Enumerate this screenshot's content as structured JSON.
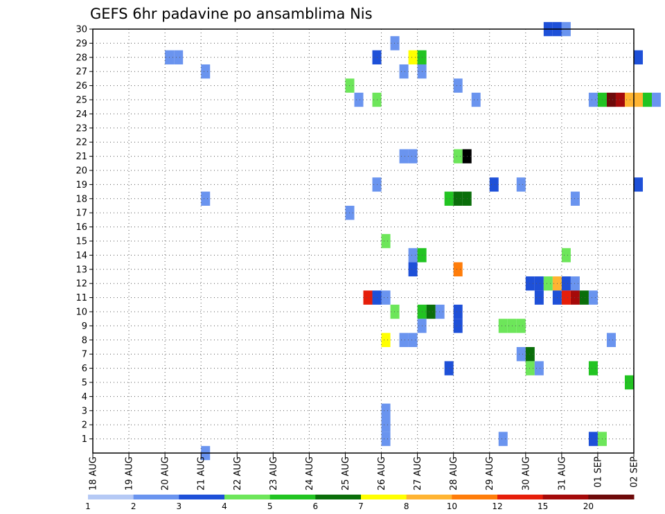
{
  "chart_data": {
    "type": "heatmap",
    "title": "GEFS 6hr padavine po ansamblima Nis",
    "x_tick_labels": [
      "18 AUG",
      "19 AUG",
      "20 AUG",
      "21 AUG",
      "22 AUG",
      "23 AUG",
      "24 AUG",
      "25 AUG",
      "26 AUG",
      "27 AUG",
      "28 AUG",
      "29 AUG",
      "30 AUG",
      "31 AUG",
      "01 SEP",
      "02 SEP"
    ],
    "y_tick_labels": [
      "1",
      "2",
      "3",
      "4",
      "5",
      "6",
      "7",
      "8",
      "9",
      "10",
      "11",
      "12",
      "13",
      "14",
      "15",
      "16",
      "17",
      "18",
      "19",
      "20",
      "21",
      "22",
      "23",
      "24",
      "25",
      "26",
      "27",
      "28",
      "29",
      "30"
    ],
    "x_range_days": [
      0,
      15
    ],
    "y_range": [
      0,
      30
    ],
    "step_days": 0.25,
    "grid": "dotted",
    "colorbar": {
      "labels": [
        "1",
        "2",
        "3",
        "4",
        "5",
        "6",
        "7",
        "8",
        "10",
        "12",
        "15",
        "20"
      ],
      "colors": [
        "#b5c9f5",
        "#6a94ef",
        "#1e50d8",
        "#6de65a",
        "#22c422",
        "#0a6e0a",
        "#ffff00",
        "#ffb432",
        "#ff7d0a",
        "#e61e0a",
        "#a50a0a",
        "#6e0a0a"
      ]
    },
    "cells": [
      [
        12.5,
        30,
        2
      ],
      [
        12.75,
        30,
        2
      ],
      [
        13,
        30,
        1
      ],
      [
        8.25,
        29,
        1
      ],
      [
        2,
        28,
        1
      ],
      [
        2.25,
        28,
        1
      ],
      [
        7.75,
        28,
        2
      ],
      [
        8.75,
        28,
        6
      ],
      [
        9,
        28,
        4
      ],
      [
        15,
        28,
        2
      ],
      [
        3,
        27,
        1
      ],
      [
        8.5,
        27,
        1
      ],
      [
        9,
        27,
        1
      ],
      [
        7,
        26,
        3
      ],
      [
        10,
        26,
        1
      ],
      [
        7.25,
        25,
        1
      ],
      [
        7.75,
        25,
        3
      ],
      [
        10.5,
        25,
        1
      ],
      [
        13.75,
        25,
        1
      ],
      [
        14,
        25,
        4
      ],
      [
        14.25,
        25,
        11
      ],
      [
        14.5,
        25,
        10
      ],
      [
        14.75,
        25,
        7
      ],
      [
        15,
        25,
        7
      ],
      [
        15.25,
        25,
        4
      ],
      [
        15.5,
        25,
        1
      ],
      [
        8.5,
        21,
        1
      ],
      [
        8.75,
        21,
        1
      ],
      [
        10,
        21,
        3
      ],
      [
        10.25,
        21,
        12
      ],
      [
        7.75,
        19,
        1
      ],
      [
        11,
        19,
        2
      ],
      [
        11.75,
        19,
        1
      ],
      [
        15,
        19,
        2
      ],
      [
        3,
        18,
        1
      ],
      [
        9.75,
        18,
        4
      ],
      [
        10,
        18,
        5
      ],
      [
        10.25,
        18,
        5
      ],
      [
        13.25,
        18,
        1
      ],
      [
        7,
        17,
        1
      ],
      [
        8,
        15,
        3
      ],
      [
        8.75,
        14,
        1
      ],
      [
        9,
        14,
        4
      ],
      [
        13,
        14,
        3
      ],
      [
        8.75,
        13,
        2
      ],
      [
        10,
        13,
        8
      ],
      [
        12,
        12,
        2
      ],
      [
        12.25,
        12,
        2
      ],
      [
        12.5,
        12,
        3
      ],
      [
        12.75,
        12,
        7
      ],
      [
        13,
        12,
        2
      ],
      [
        13.25,
        12,
        1
      ],
      [
        7.5,
        11,
        9
      ],
      [
        7.75,
        11,
        2
      ],
      [
        8,
        11,
        1
      ],
      [
        12.25,
        11,
        2
      ],
      [
        12.75,
        11,
        2
      ],
      [
        13,
        11,
        9
      ],
      [
        13.25,
        11,
        10
      ],
      [
        13.5,
        11,
        5
      ],
      [
        13.75,
        11,
        1
      ],
      [
        8.25,
        10,
        3
      ],
      [
        9,
        10,
        4
      ],
      [
        9.25,
        10,
        5
      ],
      [
        9.5,
        10,
        1
      ],
      [
        10,
        10,
        2
      ],
      [
        9,
        9,
        1
      ],
      [
        10,
        9,
        2
      ],
      [
        11.25,
        9,
        3
      ],
      [
        11.5,
        9,
        3
      ],
      [
        11.75,
        9,
        3
      ],
      [
        8,
        8,
        6
      ],
      [
        8.5,
        8,
        1
      ],
      [
        8.75,
        8,
        1
      ],
      [
        14.25,
        8,
        1
      ],
      [
        11.75,
        7,
        1
      ],
      [
        12,
        7,
        5
      ],
      [
        9.75,
        6,
        2
      ],
      [
        12,
        6,
        3
      ],
      [
        12.25,
        6,
        1
      ],
      [
        13.75,
        6,
        4
      ],
      [
        14.75,
        5,
        4
      ],
      [
        8,
        3,
        1
      ],
      [
        8,
        2,
        1
      ],
      [
        8,
        1,
        1
      ],
      [
        11.25,
        1,
        1
      ],
      [
        13.75,
        1,
        2
      ],
      [
        14,
        1,
        3
      ],
      [
        3,
        0,
        1
      ]
    ]
  }
}
